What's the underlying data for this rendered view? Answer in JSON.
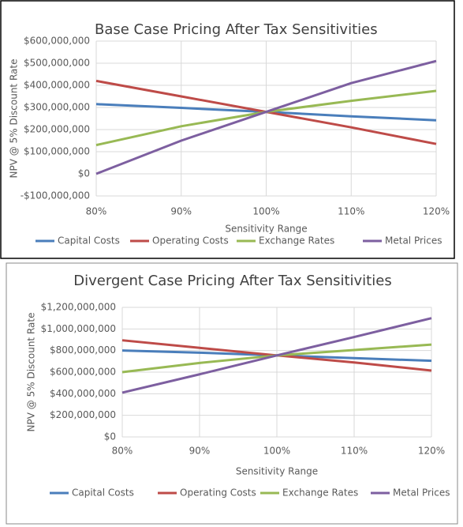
{
  "chart_data": [
    {
      "type": "line",
      "title": "Base Case Pricing After Tax Sensitivities",
      "x_label": "Sensitivity Range",
      "y_label": "NPV @ 5% Discount Rate",
      "categories": [
        "80%",
        "90%",
        "100%",
        "110%",
        "120%"
      ],
      "series": [
        {
          "name": "Capital Costs",
          "color": "#4a7ebb",
          "values": [
            315000000,
            298000000,
            280000000,
            260000000,
            242000000
          ]
        },
        {
          "name": "Operating Costs",
          "color": "#be4b48",
          "values": [
            420000000,
            350000000,
            280000000,
            210000000,
            135000000
          ]
        },
        {
          "name": "Exchange Rates",
          "color": "#98b954",
          "values": [
            130000000,
            215000000,
            280000000,
            330000000,
            375000000
          ]
        },
        {
          "name": "Metal Prices",
          "color": "#7d5fa0",
          "values": [
            0,
            150000000,
            280000000,
            410000000,
            510000000
          ]
        }
      ],
      "ylim": [
        -100000000,
        600000000
      ],
      "yticks": [
        {
          "value": -100000000,
          "label": "-$100,000,000"
        },
        {
          "value": 0,
          "label": "$0"
        },
        {
          "value": 100000000,
          "label": "$100,000,000"
        },
        {
          "value": 200000000,
          "label": "$200,000,000"
        },
        {
          "value": 300000000,
          "label": "$300,000,000"
        },
        {
          "value": 400000000,
          "label": "$400,000,000"
        },
        {
          "value": 500000000,
          "label": "$500,000,000"
        },
        {
          "value": 600000000,
          "label": "$600,000,000"
        }
      ],
      "grid": true,
      "legend": "bottom"
    },
    {
      "type": "line",
      "title": "Divergent Case Pricing After Tax Sensitivities",
      "x_label": "Sensitivity Range",
      "y_label": "NPV @ 5% Discount Rate",
      "categories": [
        "80%",
        "90%",
        "100%",
        "110%",
        "120%"
      ],
      "series": [
        {
          "name": "Capital Costs",
          "color": "#4a7ebb",
          "values": [
            800000000,
            780000000,
            755000000,
            730000000,
            705000000
          ]
        },
        {
          "name": "Operating Costs",
          "color": "#be4b48",
          "values": [
            895000000,
            825000000,
            755000000,
            690000000,
            615000000
          ]
        },
        {
          "name": "Exchange Rates",
          "color": "#98b954",
          "values": [
            600000000,
            685000000,
            755000000,
            805000000,
            855000000
          ]
        },
        {
          "name": "Metal Prices",
          "color": "#7d5fa0",
          "values": [
            410000000,
            580000000,
            755000000,
            925000000,
            1100000000
          ]
        }
      ],
      "ylim": [
        0,
        1200000000
      ],
      "yticks": [
        {
          "value": 0,
          "label": "$0"
        },
        {
          "value": 200000000,
          "label": "$200,000,000"
        },
        {
          "value": 400000000,
          "label": "$400,000,000"
        },
        {
          "value": 600000000,
          "label": "$600,000,000"
        },
        {
          "value": 800000000,
          "label": "$800,000,000"
        },
        {
          "value": 1000000000,
          "label": "$1,000,000,000"
        },
        {
          "value": 1200000000,
          "label": "$1,200,000,000"
        }
      ],
      "grid": true,
      "legend": "bottom"
    }
  ]
}
